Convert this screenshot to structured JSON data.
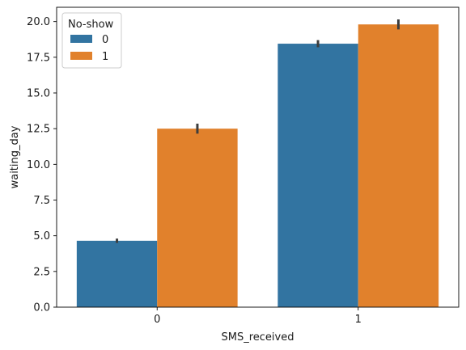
{
  "chart_data": {
    "type": "bar",
    "categories": [
      "0",
      "1"
    ],
    "xlabel": "SMS_received",
    "ylabel": "waiting_day",
    "ylim": [
      0,
      21
    ],
    "yticks": [
      0.0,
      2.5,
      5.0,
      7.5,
      10.0,
      12.5,
      15.0,
      17.5,
      20.0
    ],
    "ytick_labels": [
      "0.0",
      "2.5",
      "5.0",
      "7.5",
      "10.0",
      "12.5",
      "15.0",
      "17.5",
      "20.0"
    ],
    "grid": false,
    "legend": {
      "title": "No-show",
      "placement": "top-left"
    },
    "series": [
      {
        "name": "0",
        "color": "#3274a1",
        "values": [
          4.65,
          18.45
        ],
        "ci_low": [
          4.5,
          18.2
        ],
        "ci_high": [
          4.8,
          18.7
        ]
      },
      {
        "name": "1",
        "color": "#e1812c",
        "values": [
          12.5,
          19.8
        ],
        "ci_low": [
          12.15,
          19.45
        ],
        "ci_high": [
          12.85,
          20.15
        ]
      }
    ],
    "errorbar_color": "#3d3d3d"
  }
}
